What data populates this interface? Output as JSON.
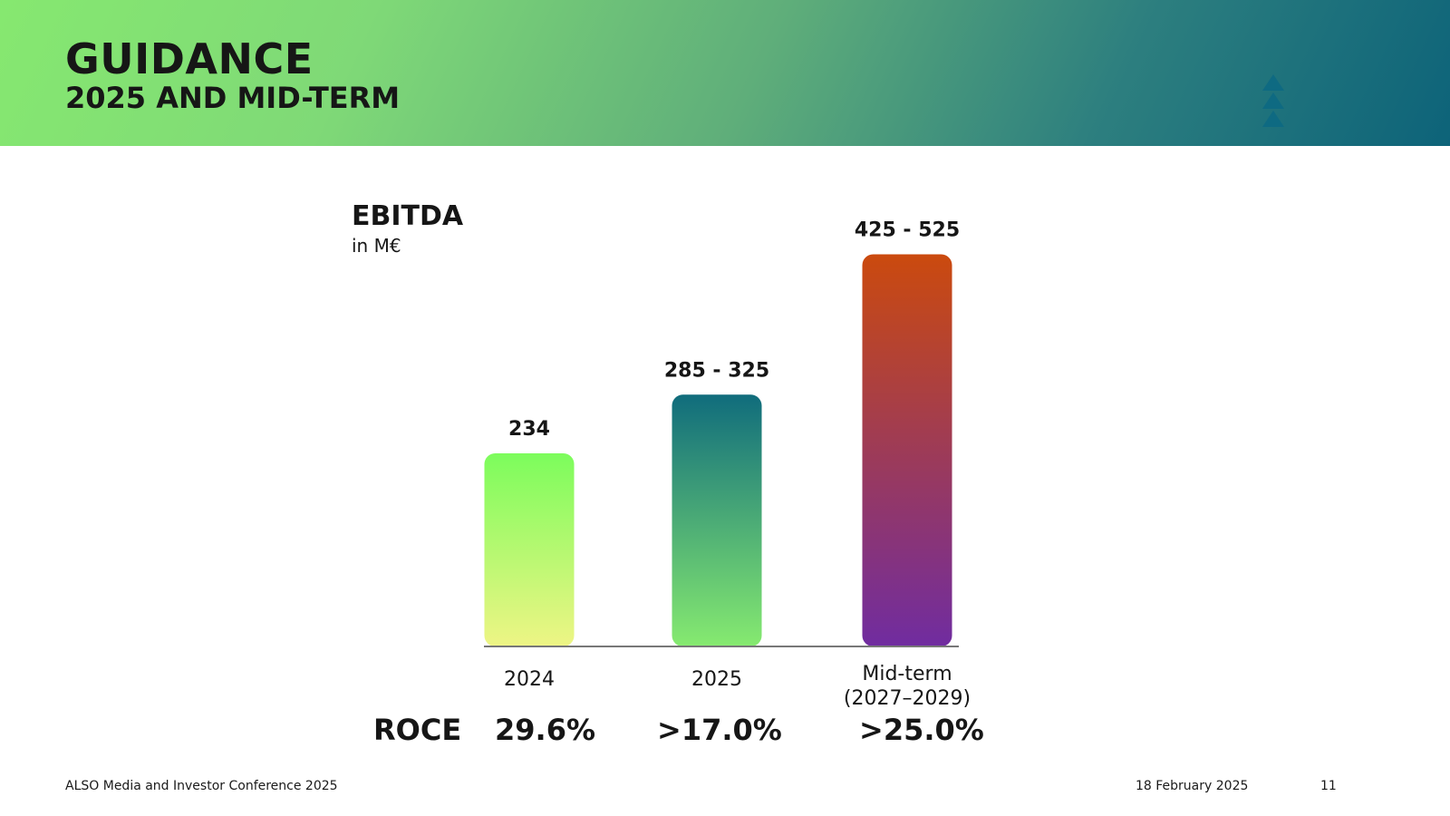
{
  "header": {
    "title": "GUIDANCE",
    "subtitle": "2025 AND MID-TERM"
  },
  "colors": {
    "header_gradient": [
      "#86e870",
      "#0d6379"
    ],
    "logo": "#0e6a82",
    "axis": "#777777"
  },
  "logo": {
    "icon": "stacked-triangles-icon"
  },
  "metric": {
    "title": "EBITDA",
    "unit": "in M€"
  },
  "chart_data": {
    "type": "bar",
    "title": "EBITDA",
    "ylabel": "in M€",
    "categories": [
      [
        "2024"
      ],
      [
        "2025"
      ],
      [
        "Mid-term",
        "(2027–2029)"
      ]
    ],
    "values": [
      234,
      305,
      475
    ],
    "ranges": [
      null,
      [
        285,
        325
      ],
      [
        425,
        525
      ]
    ],
    "data_labels": [
      "234",
      "285 - 325",
      "425 - 525"
    ],
    "bar_gradients": [
      [
        "#7cfc5c",
        "#eef585"
      ],
      [
        "#106c7c",
        "#86ea70"
      ],
      [
        "#cb4a0e",
        "#702ca0"
      ]
    ],
    "ylim": [
      0,
      525
    ],
    "grid": false,
    "legend": "none"
  },
  "roce": {
    "label": "ROCE",
    "values": [
      "29.6%",
      ">17.0%",
      ">25.0%"
    ]
  },
  "footer": {
    "event": "ALSO Media and Investor Conference 2025",
    "date": "18 February 2025",
    "page": "11"
  }
}
